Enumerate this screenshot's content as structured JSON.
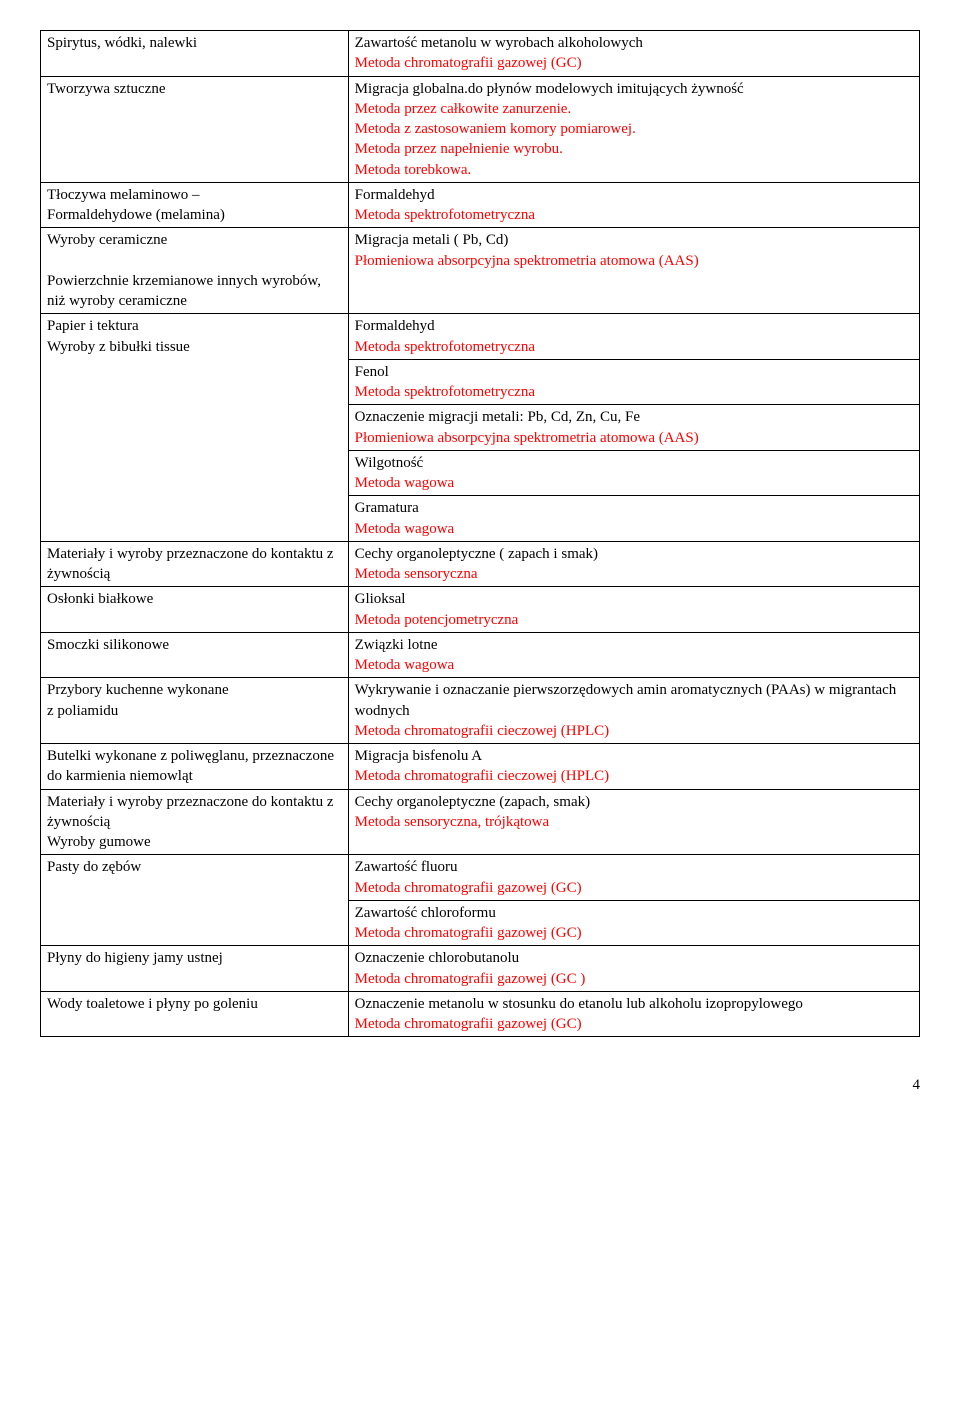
{
  "colors": {
    "text_black": "#000000",
    "text_red": "#ff0000",
    "border": "#000000",
    "background": "#ffffff"
  },
  "font": {
    "family": "Times New Roman",
    "size_pt": 15
  },
  "rows": [
    {
      "left": {
        "parts": [
          {
            "t": "Spirytus, wódki, nalewki"
          }
        ]
      },
      "right": {
        "parts": [
          {
            "t": "Zawartość metanolu w wyrobach alkoholowych"
          },
          {
            "t": "Metoda chromatografii gazowej (GC)",
            "red": true
          }
        ]
      }
    },
    {
      "left": {
        "parts": [
          {
            "t": "Tworzywa sztuczne"
          }
        ]
      },
      "right": {
        "parts": [
          {
            "t": "Migracja globalna.do płynów modelowych imitujących żywność"
          },
          {
            "t": "Metoda przez całkowite zanurzenie.",
            "red": true
          },
          {
            "t": "Metoda z zastosowaniem komory pomiarowej.",
            "red": true
          },
          {
            "t": "Metoda przez napełnienie wyrobu.",
            "red": true
          },
          {
            "t": "Metoda torebkowa.",
            "red": true
          }
        ]
      }
    },
    {
      "left": {
        "parts": [
          {
            "t": "Tłoczywa melaminowo –"
          },
          {
            "t": "Formaldehydowe (melamina)"
          }
        ]
      },
      "right": {
        "parts": [
          {
            "t": "Formaldehyd"
          },
          {
            "t": "Metoda spektrofotometryczna",
            "red": true
          }
        ]
      }
    },
    {
      "left": {
        "parts": [
          {
            "t": "Wyroby ceramiczne"
          },
          {
            "t": " "
          },
          {
            "t": "Powierzchnie krzemianowe innych wyrobów, niż wyroby ceramiczne"
          }
        ]
      },
      "right": {
        "parts": [
          {
            "t": "Migracja metali ( Pb, Cd)"
          },
          {
            "t": "Płomieniowa absorpcyjna spektrometria atomowa (AAS)",
            "red": true
          }
        ]
      }
    },
    {
      "left": {
        "rowspan": 5,
        "parts": [
          {
            "t": "Papier i tektura"
          },
          {
            "t": "Wyroby z bibułki tissue"
          }
        ]
      },
      "right": {
        "parts": [
          {
            "t": "Formaldehyd"
          },
          {
            "t": "Metoda spektrofotometryczna",
            "red": true
          }
        ]
      }
    },
    {
      "right": {
        "parts": [
          {
            "t": "Fenol"
          },
          {
            "t": "Metoda spektrofotometryczna",
            "red": true
          }
        ]
      }
    },
    {
      "right": {
        "parts": [
          {
            "t": "Oznaczenie migracji metali: Pb, Cd, Zn, Cu, Fe"
          },
          {
            "t": "Płomieniowa absorpcyjna spektrometria atomowa (AAS)",
            "red": true
          }
        ]
      }
    },
    {
      "right": {
        "parts": [
          {
            "t": "Wilgotność"
          },
          {
            "t": "Metoda wagowa",
            "red": true
          }
        ]
      }
    },
    {
      "right": {
        "parts": [
          {
            "t": "Gramatura"
          },
          {
            "t": "Metoda wagowa",
            "red": true
          }
        ]
      }
    },
    {
      "left": {
        "parts": [
          {
            "t": "Materiały i wyroby przeznaczone do kontaktu z żywnością"
          }
        ]
      },
      "right": {
        "parts": [
          {
            "t": "Cechy organoleptyczne ( zapach i smak)"
          },
          {
            "t": "Metoda sensoryczna",
            "red": true
          }
        ]
      }
    },
    {
      "left": {
        "parts": [
          {
            "t": "Osłonki białkowe"
          }
        ]
      },
      "right": {
        "parts": [
          {
            "t": "Glioksal"
          },
          {
            "t": "Metoda potencjometryczna",
            "red": true
          }
        ]
      }
    },
    {
      "left": {
        "parts": [
          {
            "t": "Smoczki silikonowe"
          }
        ]
      },
      "right": {
        "parts": [
          {
            "t": "Związki lotne"
          },
          {
            "t": "Metoda wagowa",
            "red": true
          }
        ]
      }
    },
    {
      "left": {
        "parts": [
          {
            "t": "Przybory kuchenne wykonane"
          },
          {
            "t": "z poliamidu"
          }
        ]
      },
      "right": {
        "parts": [
          {
            "t": "Wykrywanie i oznaczanie pierwszorzędowych amin aromatycznych (PAAs) w migrantach wodnych"
          },
          {
            "t": "Metoda chromatografii cieczowej (HPLC)",
            "red": true
          }
        ]
      }
    },
    {
      "left": {
        "parts": [
          {
            "t": "Butelki wykonane z poliwęglanu, przeznaczone do karmienia niemowląt"
          }
        ]
      },
      "right": {
        "parts": [
          {
            "t": "Migracja bisfenolu A"
          },
          {
            "t": "Metoda chromatografii cieczowej (HPLC)",
            "red": true
          }
        ]
      }
    },
    {
      "left": {
        "parts": [
          {
            "t": "Materiały i wyroby przeznaczone do kontaktu z żywnością"
          },
          {
            "t": "Wyroby gumowe"
          }
        ]
      },
      "right": {
        "parts": [
          {
            "t": "Cechy organoleptyczne (zapach, smak)"
          },
          {
            "t": "Metoda sensoryczna, trójkątowa",
            "red": true
          }
        ]
      }
    },
    {
      "left": {
        "rowspan": 2,
        "parts": [
          {
            "t": "Pasty do zębów"
          }
        ]
      },
      "right": {
        "parts": [
          {
            "t": "Zawartość fluoru"
          },
          {
            "t": "Metoda chromatografii gazowej (GC)",
            "red": true
          }
        ]
      }
    },
    {
      "right": {
        "parts": [
          {
            "t": "Zawartość chloroformu"
          },
          {
            "t": "Metoda chromatografii gazowej (GC)",
            "red": true
          }
        ]
      }
    },
    {
      "left": {
        "parts": [
          {
            "t": "Płyny do higieny jamy ustnej"
          }
        ]
      },
      "right": {
        "parts": [
          {
            "t": "Oznaczenie chlorobutanolu"
          },
          {
            "t": "Metoda chromatografii gazowej (GC )",
            "red": true
          }
        ]
      }
    },
    {
      "left": {
        "parts": [
          {
            "t": "Wody toaletowe i płyny po goleniu"
          }
        ]
      },
      "right": {
        "parts": [
          {
            "t": "Oznaczenie metanolu w stosunku do etanolu lub alkoholu izopropylowego"
          },
          {
            "t": "Metoda chromatografii gazowej (GC)",
            "red": true
          }
        ]
      }
    }
  ],
  "page_number": "4"
}
